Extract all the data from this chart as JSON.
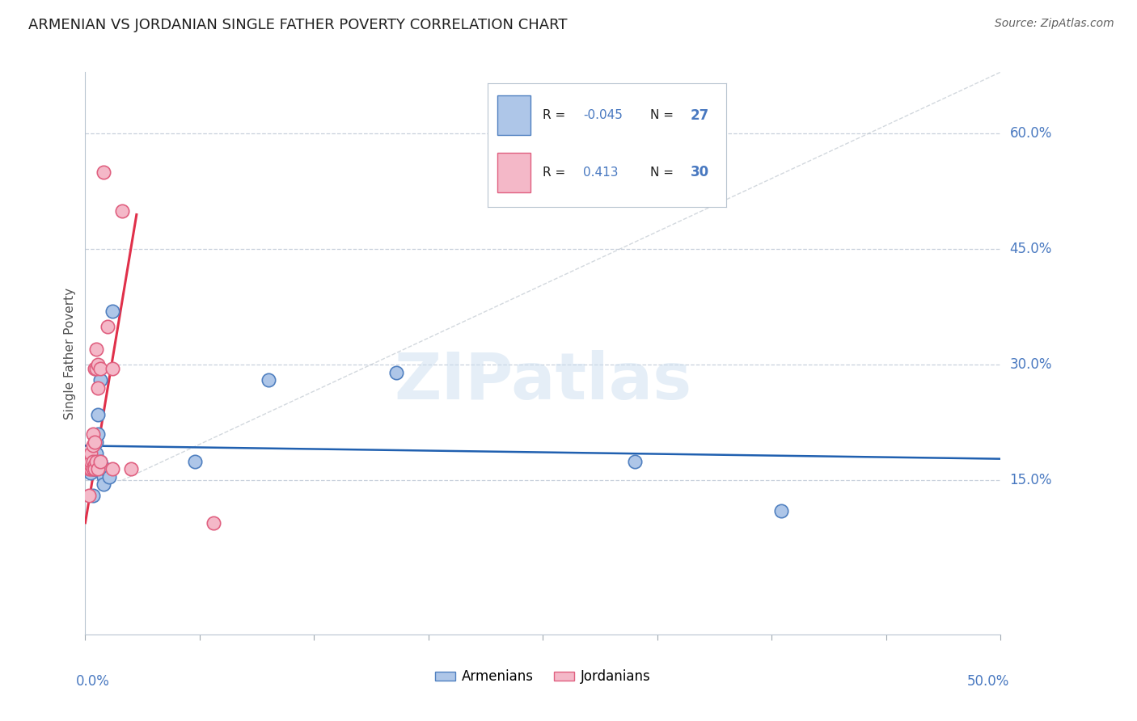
{
  "title": "ARMENIAN VS JORDANIAN SINGLE FATHER POVERTY CORRELATION CHART",
  "source": "Source: ZipAtlas.com",
  "ylabel": "Single Father Poverty",
  "ytick_labels": [
    "15.0%",
    "30.0%",
    "45.0%",
    "60.0%"
  ],
  "ytick_values": [
    0.15,
    0.3,
    0.45,
    0.6
  ],
  "xlim": [
    0.0,
    0.5
  ],
  "ylim": [
    -0.05,
    0.68
  ],
  "armenian_R": -0.045,
  "armenian_N": 27,
  "jordanian_R": 0.413,
  "jordanian_N": 30,
  "armenian_color": "#aec6e8",
  "armenian_edge_color": "#5080c0",
  "armenian_line_color": "#2060b0",
  "jordanian_color": "#f4b8c8",
  "jordanian_edge_color": "#e06080",
  "jordanian_line_color": "#e0304a",
  "grid_color": "#c8d0dc",
  "background_color": "#ffffff",
  "label_color": "#4878c0",
  "watermark": "ZIPatlas",
  "armenian_x": [
    0.002,
    0.003,
    0.003,
    0.004,
    0.004,
    0.004,
    0.005,
    0.005,
    0.005,
    0.006,
    0.006,
    0.006,
    0.007,
    0.007,
    0.008,
    0.008,
    0.009,
    0.01,
    0.01,
    0.011,
    0.013,
    0.015,
    0.06,
    0.1,
    0.17,
    0.3,
    0.38
  ],
  "armenian_y": [
    0.175,
    0.17,
    0.16,
    0.175,
    0.165,
    0.13,
    0.175,
    0.17,
    0.165,
    0.2,
    0.185,
    0.165,
    0.21,
    0.235,
    0.28,
    0.175,
    0.165,
    0.155,
    0.145,
    0.165,
    0.155,
    0.37,
    0.175,
    0.28,
    0.29,
    0.175,
    0.11
  ],
  "jordanian_x": [
    0.002,
    0.002,
    0.002,
    0.003,
    0.003,
    0.003,
    0.003,
    0.004,
    0.004,
    0.004,
    0.004,
    0.005,
    0.005,
    0.005,
    0.005,
    0.006,
    0.006,
    0.006,
    0.007,
    0.007,
    0.007,
    0.008,
    0.008,
    0.01,
    0.012,
    0.015,
    0.015,
    0.02,
    0.025,
    0.07
  ],
  "jordanian_y": [
    0.175,
    0.165,
    0.13,
    0.165,
    0.17,
    0.175,
    0.185,
    0.165,
    0.175,
    0.195,
    0.21,
    0.2,
    0.17,
    0.165,
    0.295,
    0.295,
    0.32,
    0.175,
    0.165,
    0.3,
    0.27,
    0.295,
    0.175,
    0.55,
    0.35,
    0.165,
    0.295,
    0.5,
    0.165,
    0.095
  ],
  "arm_line_x0": 0.0,
  "arm_line_x1": 0.5,
  "arm_line_y0": 0.195,
  "arm_line_y1": 0.178,
  "jor_line_x0": 0.0,
  "jor_line_x1": 0.028,
  "jor_line_y0": 0.095,
  "jor_line_y1": 0.495,
  "dash_line_x0": 0.02,
  "dash_line_x1": 0.5,
  "dash_line_y0": 0.15,
  "dash_line_y1": 0.68
}
